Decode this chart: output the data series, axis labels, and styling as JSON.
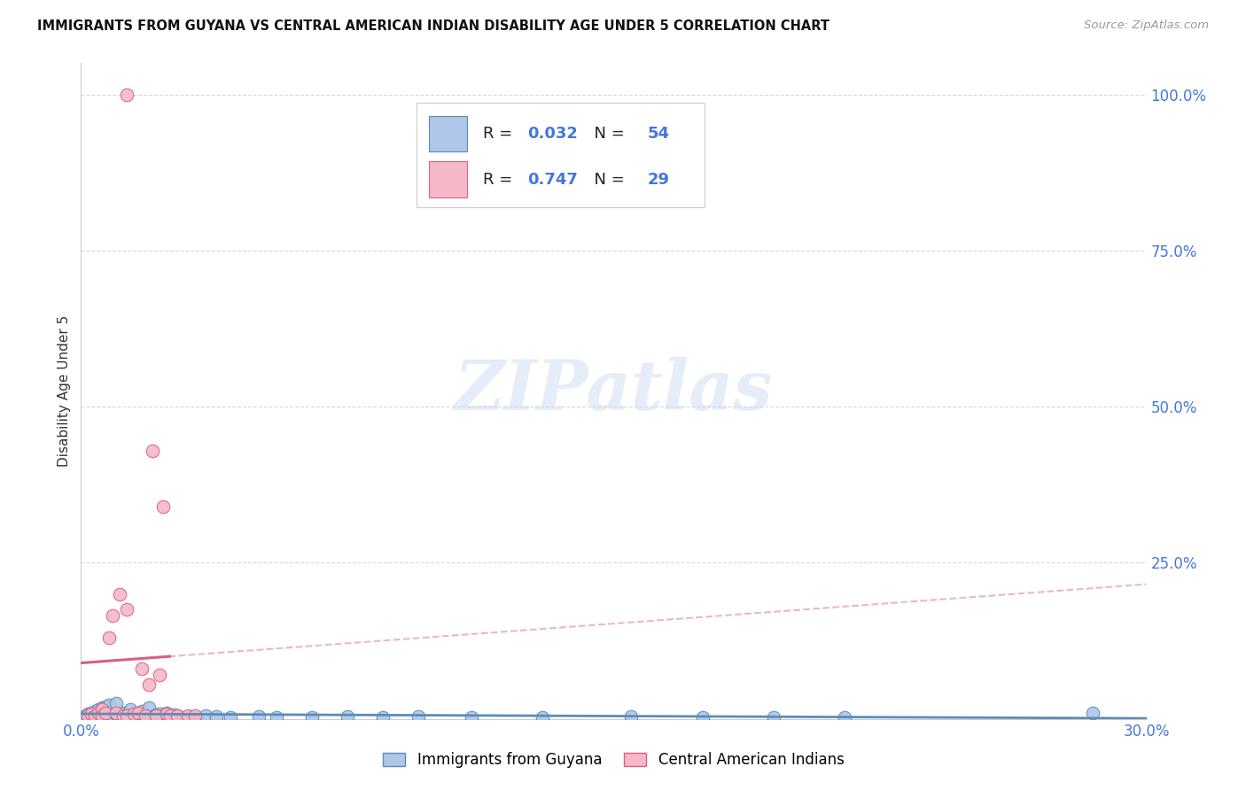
{
  "title": "IMMIGRANTS FROM GUYANA VS CENTRAL AMERICAN INDIAN DISABILITY AGE UNDER 5 CORRELATION CHART",
  "source": "Source: ZipAtlas.com",
  "ylabel": "Disability Age Under 5",
  "xlim": [
    0.0,
    0.3
  ],
  "ylim": [
    0.0,
    1.05
  ],
  "yticks_right": [
    0.0,
    0.25,
    0.5,
    0.75,
    1.0
  ],
  "ytick_labels_right": [
    "",
    "25.0%",
    "50.0%",
    "75.0%",
    "100.0%"
  ],
  "guyana_color": "#aec6e8",
  "guyana_edge_color": "#5b8db8",
  "ca_indian_color": "#f5b8c8",
  "ca_indian_edge_color": "#d96080",
  "guyana_R": 0.032,
  "guyana_N": 54,
  "ca_indian_R": 0.747,
  "ca_indian_N": 29,
  "legend_label_guyana": "Immigrants from Guyana",
  "legend_label_ca": "Central American Indians",
  "background_color": "#ffffff",
  "grid_color": "#d8d8d8",
  "right_axis_color": "#4477dd",
  "reg_guyana_color": "#5b8db8",
  "reg_ca_color": "#d96080",
  "reg_ca_dash_color": "#e0a8b8"
}
